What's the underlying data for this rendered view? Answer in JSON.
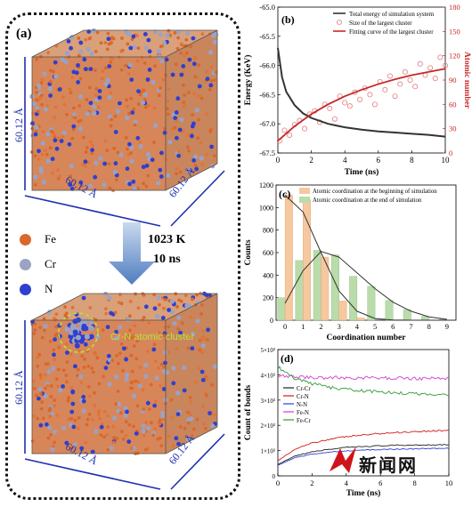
{
  "panel_a": {
    "label": "(a)",
    "box_dims": [
      "60.12 Å",
      "60.12 Å",
      "60.12 Å"
    ],
    "legend": [
      {
        "name": "Fe",
        "color": "#d9682a"
      },
      {
        "name": "Cr",
        "color": "#9aa3c4"
      },
      {
        "name": "N",
        "color": "#2f3fd0"
      }
    ],
    "process": {
      "temperature": "1023 K",
      "time": "10 ns"
    },
    "cluster_annotation": "Cr-N atomic cluster",
    "annotation_color": "#b7e23a",
    "dimension_color": "#1f2fb0"
  },
  "chart_data": [
    {
      "panel": "(b)",
      "type": "line",
      "xlabel": "Time (ns)",
      "ylabel": "Energy (KeV)",
      "ylabel_right": "Atomic number",
      "xlim": [
        0,
        10
      ],
      "ylim": [
        -67.5,
        -65.0
      ],
      "ylim_right": [
        0,
        180
      ],
      "xticks": [
        "0",
        "2",
        "4",
        "6",
        "8",
        "10"
      ],
      "yticks": [
        "-65.0",
        "-65.5",
        "-66.0",
        "-66.5",
        "-67.0",
        "-67.5"
      ],
      "yticks_right": [
        "0",
        "30",
        "60",
        "90",
        "120",
        "150",
        "180"
      ],
      "legend": [
        "Total energy of simulation system",
        "Size of the largest cluster",
        "Fitting curve of the largest cluster"
      ],
      "series": [
        {
          "name": "Total energy of simulation system",
          "axis": "left",
          "color": "#333333",
          "x": [
            0,
            0.25,
            0.5,
            1,
            1.5,
            2,
            3,
            4,
            5,
            6,
            7,
            8,
            9,
            10
          ],
          "y": [
            -65.7,
            -66.2,
            -66.45,
            -66.68,
            -66.82,
            -66.9,
            -67.0,
            -67.06,
            -67.1,
            -67.13,
            -67.15,
            -67.17,
            -67.19,
            -67.22
          ]
        },
        {
          "name": "Size of the largest cluster",
          "axis": "right",
          "color": "#e27a7a",
          "marker": "open-circle",
          "x": [
            0.1,
            0.4,
            0.7,
            1.0,
            1.3,
            1.6,
            1.9,
            2.2,
            2.5,
            2.8,
            3.1,
            3.4,
            3.7,
            4.0,
            4.3,
            4.6,
            4.9,
            5.2,
            5.5,
            5.8,
            6.1,
            6.4,
            6.7,
            7.0,
            7.3,
            7.6,
            7.9,
            8.2,
            8.5,
            8.8,
            9.1,
            9.4,
            9.7,
            10.0
          ],
          "y": [
            15,
            28,
            22,
            35,
            40,
            30,
            48,
            52,
            38,
            60,
            55,
            42,
            70,
            62,
            58,
            75,
            66,
            80,
            72,
            60,
            88,
            78,
            95,
            70,
            85,
            100,
            90,
            82,
            110,
            96,
            105,
            92,
            118,
            108
          ]
        },
        {
          "name": "Fitting curve of the largest cluster",
          "axis": "right",
          "color": "#c62828",
          "x": [
            0,
            1,
            2,
            3,
            4,
            5,
            6,
            7,
            8,
            9,
            10
          ],
          "y": [
            15,
            33,
            48,
            60,
            70,
            78,
            85,
            91,
            96,
            100,
            104
          ]
        }
      ]
    },
    {
      "panel": "(c)",
      "type": "bar",
      "xlabel": "Coordination number",
      "ylabel": "Counts",
      "categories": [
        "0",
        "1",
        "2",
        "3",
        "4",
        "5",
        "6",
        "7",
        "8",
        "9"
      ],
      "ylim": [
        0,
        1200
      ],
      "yticks": [
        "0",
        "200",
        "400",
        "600",
        "800",
        "1000",
        "1200"
      ],
      "legend": [
        "Atomic coordination at the beginning of simulation",
        "Atomic coordination at the end of simulation"
      ],
      "series": [
        {
          "name": "Atomic coordination at the beginning of simulation",
          "color": "#f6c8a0",
          "values": [
            1110,
            1070,
            560,
            170,
            20,
            0,
            0,
            0,
            0,
            0
          ],
          "fit": [
            1110,
            960,
            600,
            260,
            80,
            15,
            2,
            0,
            0,
            0
          ]
        },
        {
          "name": "Atomic coordination at the end of simulation",
          "color": "#b9dcaa",
          "values": [
            200,
            530,
            620,
            580,
            390,
            300,
            175,
            95,
            35,
            10
          ],
          "fit": [
            150,
            440,
            610,
            560,
            420,
            280,
            160,
            80,
            30,
            8
          ]
        }
      ]
    },
    {
      "panel": "(d)",
      "type": "line",
      "xlabel": "Time (ns)",
      "ylabel": "Count of bonds",
      "xlim": [
        0,
        10
      ],
      "ylim": [
        0,
        5000
      ],
      "xticks": [
        "0",
        "2",
        "4",
        "6",
        "8",
        "10"
      ],
      "yticks": [
        "0",
        "1×10³",
        "2×10³",
        "3×10³",
        "4×10³",
        "5×10³"
      ],
      "legend": [
        "Cr-Cr",
        "Cr-N",
        "N-N",
        "Fe-N",
        "Fe-Cr"
      ],
      "series": [
        {
          "name": "Cr-Cr",
          "color": "#222222",
          "x": [
            0,
            1,
            2,
            3,
            4,
            5,
            6,
            7,
            8,
            9,
            10
          ],
          "y": [
            450,
            780,
            950,
            1050,
            1120,
            1160,
            1190,
            1210,
            1220,
            1230,
            1240
          ]
        },
        {
          "name": "Cr-N",
          "color": "#d11a1a",
          "x": [
            0,
            1,
            2,
            3,
            4,
            5,
            6,
            7,
            8,
            9,
            10
          ],
          "y": [
            600,
            1050,
            1300,
            1450,
            1550,
            1620,
            1680,
            1720,
            1750,
            1780,
            1800
          ]
        },
        {
          "name": "N-N",
          "color": "#2b3fd6",
          "x": [
            0,
            1,
            2,
            3,
            4,
            5,
            6,
            7,
            8,
            9,
            10
          ],
          "y": [
            420,
            720,
            860,
            940,
            990,
            1020,
            1040,
            1060,
            1070,
            1080,
            1090
          ]
        },
        {
          "name": "Fe-N",
          "color": "#d03cd0",
          "x": [
            0,
            1,
            2,
            3,
            4,
            5,
            6,
            7,
            8,
            9,
            10
          ],
          "y": [
            3950,
            3920,
            3900,
            3890,
            3880,
            3880,
            3870,
            3870,
            3860,
            3860,
            3860
          ]
        },
        {
          "name": "Fe-Cr",
          "color": "#2e9a3c",
          "x": [
            0,
            1,
            2,
            3,
            4,
            5,
            6,
            7,
            8,
            9,
            10
          ],
          "y": [
            4300,
            3850,
            3650,
            3500,
            3420,
            3360,
            3320,
            3280,
            3250,
            3230,
            3210
          ]
        }
      ]
    }
  ],
  "watermark": {
    "text": "新闻网"
  }
}
